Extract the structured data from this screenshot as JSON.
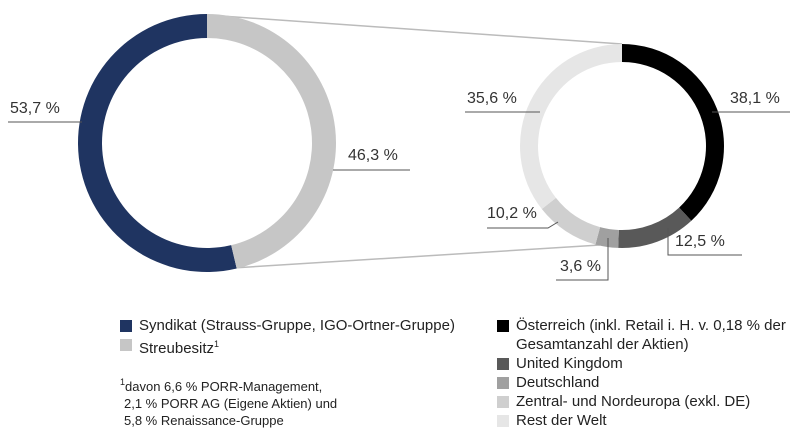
{
  "chart_data": [
    {
      "type": "pie",
      "donut": true,
      "direction": "counterclockwise",
      "categories": [
        "Syndikat (Strauss-Gruppe, IGO-Ortner-Gruppe)",
        "Streubesitz"
      ],
      "values": [
        53.7,
        46.3
      ],
      "value_labels": [
        "53,7 %",
        "46,3 %"
      ],
      "colors": [
        "#1f3461",
        "#c6c6c6"
      ],
      "footnote": {
        "marker": "1",
        "lines": [
          "davon 6,6 % PORR-Management,",
          "2,1 % PORR AG (Eigene Aktien) und",
          "5,8 % Renaissance-Gruppe"
        ]
      }
    },
    {
      "type": "pie",
      "donut": true,
      "direction": "clockwise",
      "categories": [
        "Österreich (inkl. Retail i. H. v. 0,18 % der Gesamtanzahl der Aktien)",
        "United Kingdom",
        "Deutschland",
        "Zentral- und Nordeuropa (exkl. DE)",
        "Rest der Welt"
      ],
      "values": [
        38.1,
        12.5,
        3.6,
        10.2,
        35.6
      ],
      "value_labels": [
        "38,1 %",
        "12,5 %",
        "3,6 %",
        "10,2 %",
        "35,6 %"
      ],
      "colors": [
        "#000000",
        "#595959",
        "#a0a0a0",
        "#cfcfcf",
        "#e6e6e6"
      ]
    }
  ]
}
